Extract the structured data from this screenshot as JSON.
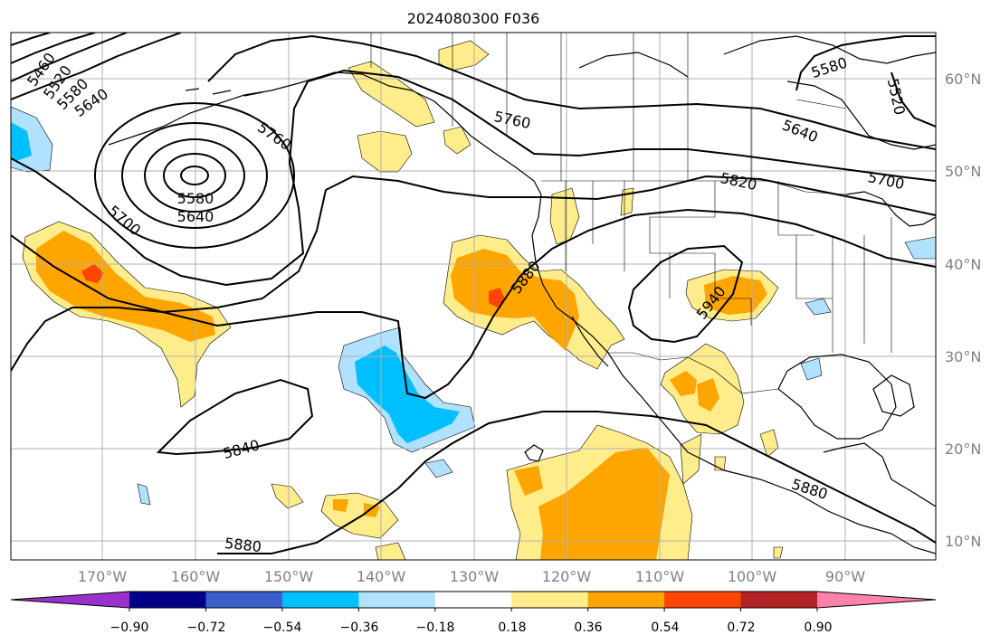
{
  "title": "2024080300 F036",
  "axes": {
    "lon_ticks": [
      "170°W",
      "160°W",
      "150°W",
      "140°W",
      "130°W",
      "120°W",
      "110°W",
      "100°W",
      "90°W"
    ],
    "lat_ticks": [
      "60°N",
      "50°N",
      "40°N",
      "30°N",
      "20°N",
      "10°N"
    ]
  },
  "colorbar": {
    "ticks": [
      "−0.90",
      "−0.72",
      "−0.54",
      "−0.36",
      "−0.18",
      "0.18",
      "0.36",
      "0.54",
      "0.72",
      "0.90"
    ],
    "colors": [
      "#9932cc",
      "#00008b",
      "#3a5fcd",
      "#00bfff",
      "#b0e2ff",
      "#ffffff",
      "#ffec8b",
      "#ffa500",
      "#ff4500",
      "#b22222",
      "#ff82ab"
    ]
  },
  "contour_labels": [
    {
      "text": "5460"
    },
    {
      "text": "5520"
    },
    {
      "text": "5580"
    },
    {
      "text": "5640"
    },
    {
      "text": "5760"
    },
    {
      "text": "5580"
    },
    {
      "text": "5640"
    },
    {
      "text": "5700"
    },
    {
      "text": "5760"
    },
    {
      "text": "5820"
    },
    {
      "text": "5880"
    },
    {
      "text": "5940"
    },
    {
      "text": "5840"
    },
    {
      "text": "5880"
    },
    {
      "text": "5880"
    },
    {
      "text": "5580"
    },
    {
      "text": "5520"
    },
    {
      "text": "5640"
    },
    {
      "text": "5700"
    }
  ]
}
